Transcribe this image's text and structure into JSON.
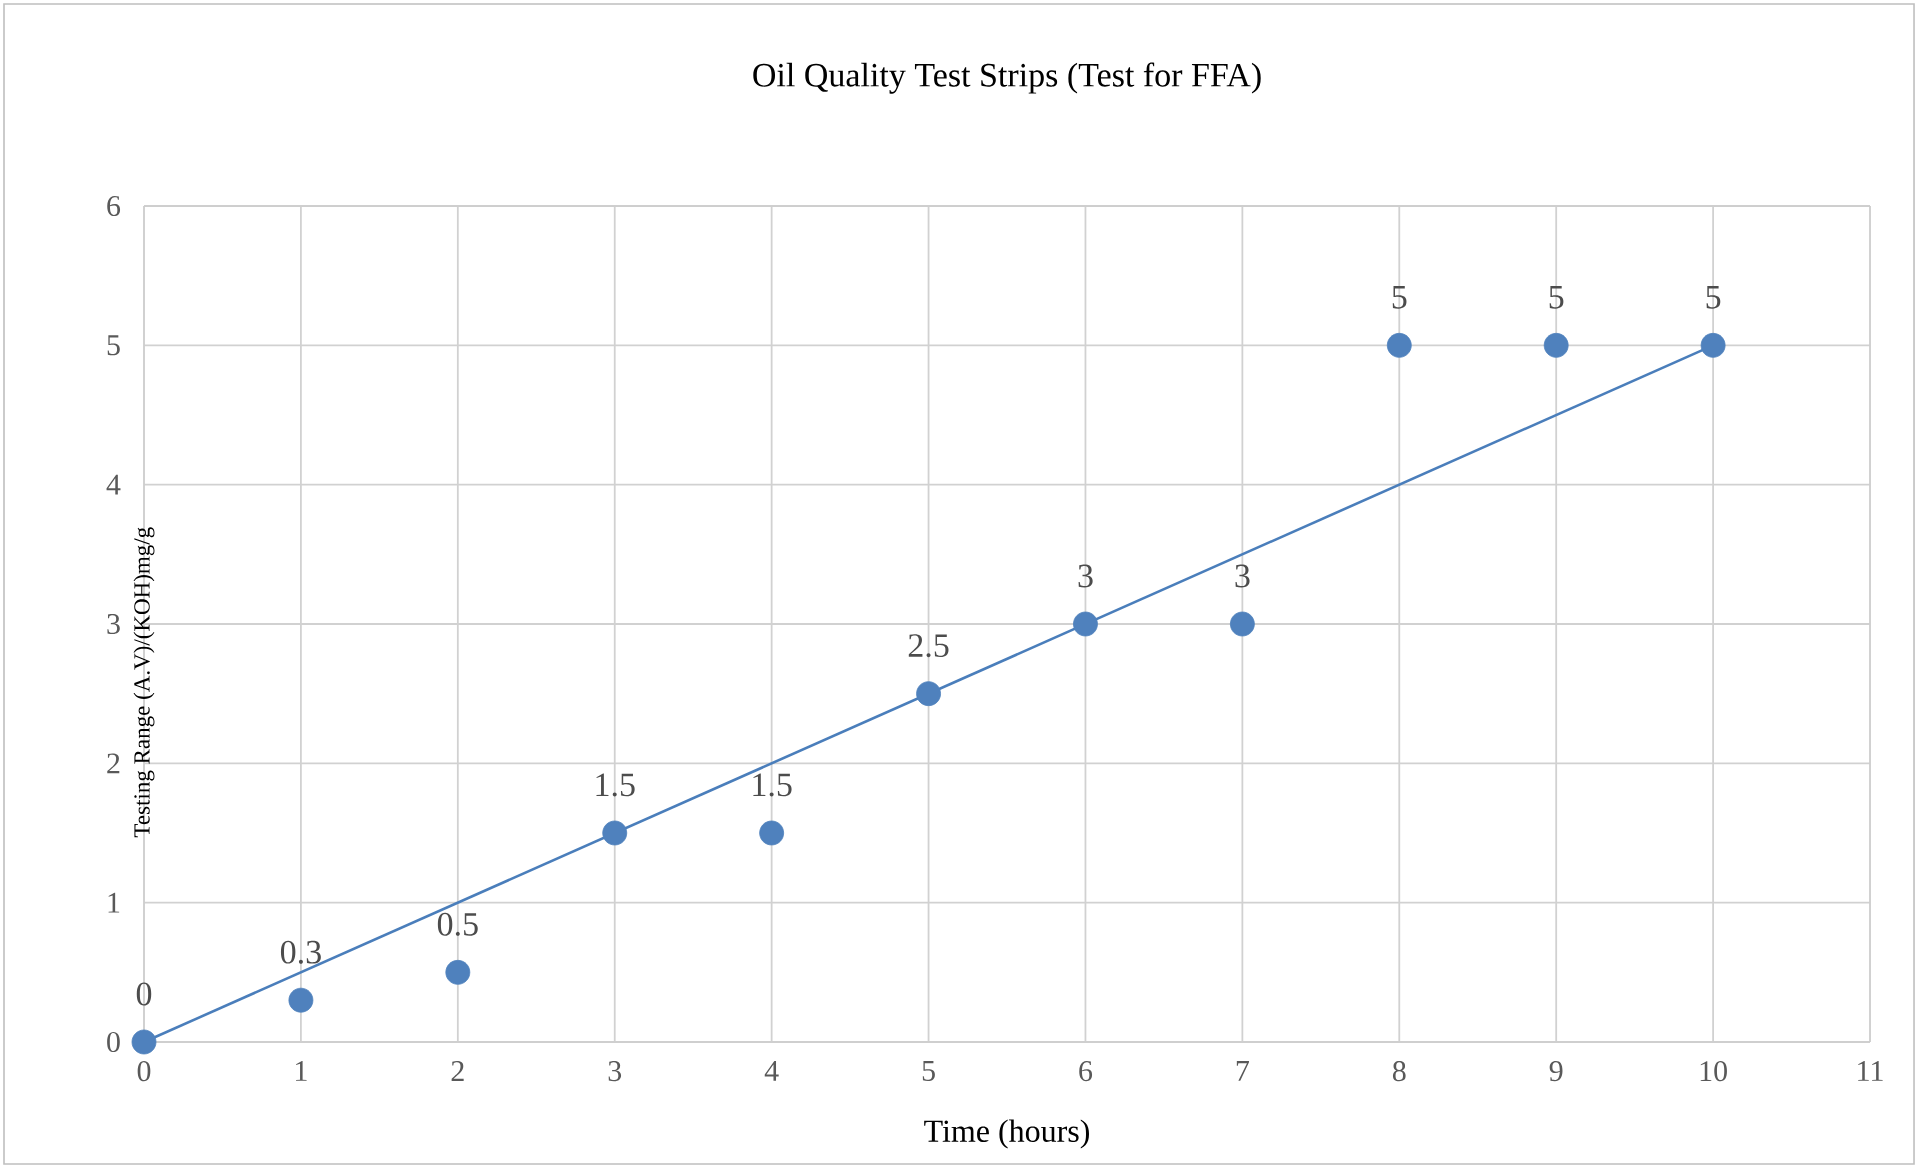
{
  "chart_data": {
    "type": "scatter",
    "title": "Oil Quality Test Strips (Test for FFA)",
    "xlabel": "Time (hours)",
    "ylabel": "Testing Range (A.V)/(KOH)mg/g",
    "x": [
      0,
      1,
      2,
      3,
      4,
      5,
      6,
      7,
      8,
      9,
      10
    ],
    "series": [
      {
        "color": "#4f81bd",
        "marker": "circle",
        "values": [
          0,
          0.3,
          0.5,
          1.5,
          1.5,
          2.5,
          3,
          3,
          5,
          5,
          5
        ],
        "value_labels": [
          "0",
          "0.3",
          "0.5",
          "1.5",
          "1.5",
          "2.5",
          "3",
          "3",
          "5",
          "5",
          "5"
        ]
      },
      {
        "type": "line",
        "color": "#4a7ebb",
        "marker": "none",
        "x": [
          0,
          10
        ],
        "values": [
          0,
          5
        ]
      }
    ],
    "xlim": [
      0,
      11
    ],
    "ylim": [
      0,
      6
    ],
    "xticks": [
      0,
      1,
      2,
      3,
      4,
      5,
      6,
      7,
      8,
      9,
      10,
      11
    ],
    "yticks": [
      0,
      1,
      2,
      3,
      4,
      5,
      6
    ],
    "grid": true
  }
}
